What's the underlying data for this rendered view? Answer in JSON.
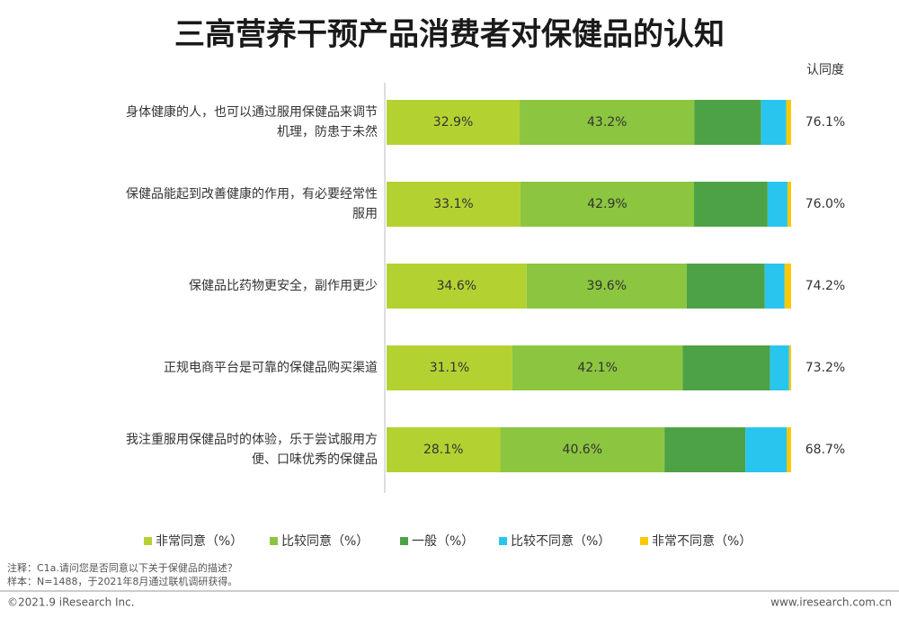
{
  "chart_data": {
    "type": "stacked-barh",
    "title": "三高营养干预产品消费者对保健品的认知",
    "categories": [
      "身体健康的人，也可以通过服用保健品来调节机理，防患于未然",
      "保健品能起到改善健康的作用，有必要经常性服用",
      "保健品比药物更安全，副作用更少",
      "正规电商平台是可靠的保健品购买渠道",
      "我注重服用保健品时的体验，乐于尝试服用方便、口味优秀的保健品"
    ],
    "series": [
      {
        "name": "非常同意（%）",
        "color": "#b3d232",
        "values": [
          32.9,
          33.1,
          34.6,
          31.1,
          28.1
        ],
        "value_labels": [
          "32.9%",
          "33.1%",
          "34.6%",
          "31.1%",
          "28.1%"
        ]
      },
      {
        "name": "比较同意（%）",
        "color": "#8cc540",
        "values": [
          43.2,
          42.9,
          39.6,
          42.1,
          40.6
        ],
        "value_labels": [
          "43.2%",
          "42.9%",
          "39.6%",
          "42.1%",
          "40.6%"
        ]
      },
      {
        "name": "一般（%）",
        "color": "#4ea246",
        "values": [
          16.5,
          18.2,
          19.3,
          21.6,
          20.0
        ]
      },
      {
        "name": "比较不同意（%）",
        "color": "#29c5ef",
        "values": [
          6.2,
          4.9,
          4.9,
          4.7,
          10.2
        ]
      },
      {
        "name": "非常不同意（%）",
        "color": "#fdc800",
        "values": [
          1.2,
          0.9,
          1.6,
          0.5,
          1.1
        ]
      }
    ],
    "xlim": [
      0,
      100
    ],
    "agreement": {
      "title": "认同度",
      "labels": [
        "76.1%",
        "76.0%",
        "74.2%",
        "73.2%",
        "68.7%"
      ]
    },
    "notes": [
      "注释：C1a.请问您是否同意以下关于保健品的描述？",
      "样本：N=1488，于2021年8月通过联机调研获得。"
    ],
    "copyright": "©2021.9 iResearch Inc.",
    "website": "www.iresearch.com.cn"
  }
}
